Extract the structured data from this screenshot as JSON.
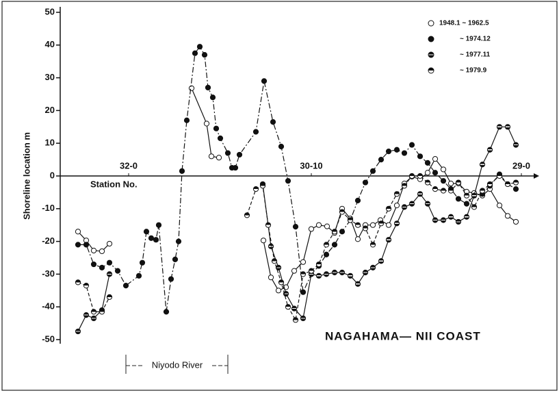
{
  "chart_data": {
    "type": "line",
    "ylabel": "Shoreline location  m",
    "xlabel": "Station No.",
    "annotations": [
      "NAGAHAMA— NII COAST",
      "Niyodo River"
    ],
    "xlim": [
      0,
      70
    ],
    "xticks": [
      {
        "value": 10,
        "label": "32-0"
      },
      {
        "value": 36.7,
        "label": "30-10"
      },
      {
        "value": 67.4,
        "label": "29-0"
      }
    ],
    "ylim": [
      -50,
      50
    ],
    "yticks": [
      -50,
      -40,
      -30,
      -20,
      -10,
      0,
      10,
      20,
      30,
      40,
      50
    ],
    "legend": "upper right",
    "series": [
      {
        "name": "1948.1 ~ 1962.5",
        "color": "#111111",
        "marker": "open",
        "dash": "solid",
        "x": [
          2.6,
          3.8,
          4.9,
          6.1,
          7.2,
          null,
          19.2,
          21.4,
          22.1,
          23.2,
          null,
          29.7,
          30.8,
          31.9,
          33,
          34.2,
          35.5,
          36.7,
          37.8,
          39,
          40.1,
          41.2,
          42.4,
          43.5,
          44.6,
          45.7,
          46.8,
          48,
          49.2,
          50.3,
          51.4,
          52.6,
          53.7,
          54.8,
          56,
          57.1,
          58.2,
          59.4,
          60.5,
          61.7,
          62.8,
          64.2,
          65.4,
          66.6
        ],
        "values": [
          -17,
          -19.7,
          -22.8,
          -23,
          -20.7,
          null,
          26.8,
          16,
          6,
          5.6,
          null,
          -19.7,
          -31,
          -35,
          -34,
          -29,
          -26.3,
          -16.2,
          -15,
          -15.4,
          -17.4,
          -10,
          -13,
          -19.3,
          -15,
          -15,
          -13.5,
          -15,
          -9,
          -2.3,
          -0.2,
          -1,
          1,
          5.2,
          2,
          -2.3,
          -2.3,
          -4.8,
          -5.2,
          -6,
          -4,
          -9,
          -12.2,
          -14
        ]
      },
      {
        "name": "~ 1974.12",
        "color": "#111111",
        "marker": "filled",
        "dash": "dashdot",
        "x": [
          2.6,
          3.8,
          4.9,
          6.1,
          7.2,
          8.4,
          9.6,
          11.5,
          12,
          12.6,
          13.3,
          14,
          14.4,
          15.5,
          16.2,
          16.8,
          17.3,
          17.8,
          18.5,
          19.7,
          20.4,
          21.1,
          21.6,
          22.3,
          22.8,
          23.4,
          24.5,
          25.1,
          25.6,
          26.2,
          28.6,
          29.8,
          31.1,
          32.3,
          33.3,
          34.4,
          35.5,
          36.7,
          37.8,
          38.9,
          40.1,
          41.2,
          42.4,
          43.5,
          44.6,
          45.7,
          46.9,
          48,
          49.2,
          50.3,
          51.4,
          52.6,
          53.7,
          54.8,
          56,
          57.1,
          58.2,
          59.4,
          60.5,
          61.7,
          62.8,
          64.2,
          65.4,
          66.6
        ],
        "values": [
          -21,
          -21,
          -27,
          -28,
          -26.5,
          -29,
          -33.5,
          -30.5,
          -26.5,
          -17,
          -19,
          -19.5,
          -15,
          -41.5,
          -31.5,
          -25.5,
          -20,
          1.5,
          17,
          37.5,
          39.5,
          37,
          27,
          24,
          14.5,
          11.5,
          7,
          2.5,
          2.5,
          6.5,
          13.5,
          29,
          16.5,
          9,
          -1.5,
          -15.5,
          -35.5,
          -30,
          -27.5,
          -24,
          -21,
          -17,
          -13.5,
          -7.5,
          -2,
          1.5,
          5,
          7.5,
          8,
          7,
          9.5,
          6,
          4,
          1,
          -1.5,
          -4,
          -7,
          -8.5,
          -6,
          -5.5,
          -3,
          0.5,
          -2.5,
          -4
        ]
      },
      {
        "name": "~ 1977.11",
        "color": "#111111",
        "marker": "mostly-filled",
        "dash": "solid",
        "x": [
          2.6,
          3.8,
          4.9,
          6.1,
          7.2,
          null,
          29.6,
          30.8,
          31.9,
          33,
          34.2,
          35.5,
          36.7,
          37.8,
          38.9,
          40.1,
          41.2,
          42.4,
          43.5,
          44.6,
          45.7,
          46.9,
          48,
          49.2,
          50.3,
          51.4,
          52.6,
          53.7,
          54.8,
          56,
          57.1,
          58.2,
          59.4,
          60.5,
          61.7,
          62.8,
          64.2,
          65.4,
          66.6
        ],
        "values": [
          -47.5,
          -42.5,
          -43.5,
          -41,
          -30,
          null,
          -2.5,
          -21.5,
          -28,
          -36,
          -40.5,
          -43.5,
          -30,
          -30.5,
          -30,
          -29.5,
          -29.5,
          -30.5,
          -33,
          -29.5,
          -28,
          -26,
          -19.5,
          -14.5,
          -9.5,
          -8.5,
          -5.5,
          -8.5,
          -13.5,
          -13.5,
          -12.5,
          -14,
          -12.5,
          -6,
          3.5,
          8,
          15,
          15,
          9.5
        ]
      },
      {
        "name": "~ 1979.9",
        "color": "#111111",
        "marker": "half",
        "dash": "dashed",
        "x": [
          2.6,
          3.8,
          4.9,
          6.1,
          7.2,
          null,
          27.3,
          28.6,
          29.6,
          30.4,
          31.3,
          32.3,
          33.3,
          34.4,
          35.5,
          36.7,
          37.8,
          38.9,
          40.1,
          41.2,
          42.4,
          43.5,
          44.6,
          45.7,
          46.9,
          48,
          49.2,
          50.3,
          51.4,
          52.6,
          53.7,
          54.8,
          56,
          57.1,
          58.2,
          59.4,
          60.5,
          61.7,
          62.8,
          64.2,
          65.4,
          66.6
        ],
        "values": [
          -32.5,
          -33.5,
          -41.5,
          -41.5,
          -37,
          null,
          -12,
          -4,
          -3,
          -15,
          -26,
          -32.5,
          -40,
          -44,
          -30,
          -29,
          -27,
          -21,
          -17,
          -11,
          -13.5,
          -15,
          -16,
          -21,
          -14.5,
          -10,
          -5.5,
          -3,
          0,
          0,
          -2,
          -4,
          -4.5,
          -4.5,
          -2,
          -6,
          -9.5,
          -4.5,
          -2.5,
          0,
          -2.5,
          -2
        ]
      }
    ]
  }
}
